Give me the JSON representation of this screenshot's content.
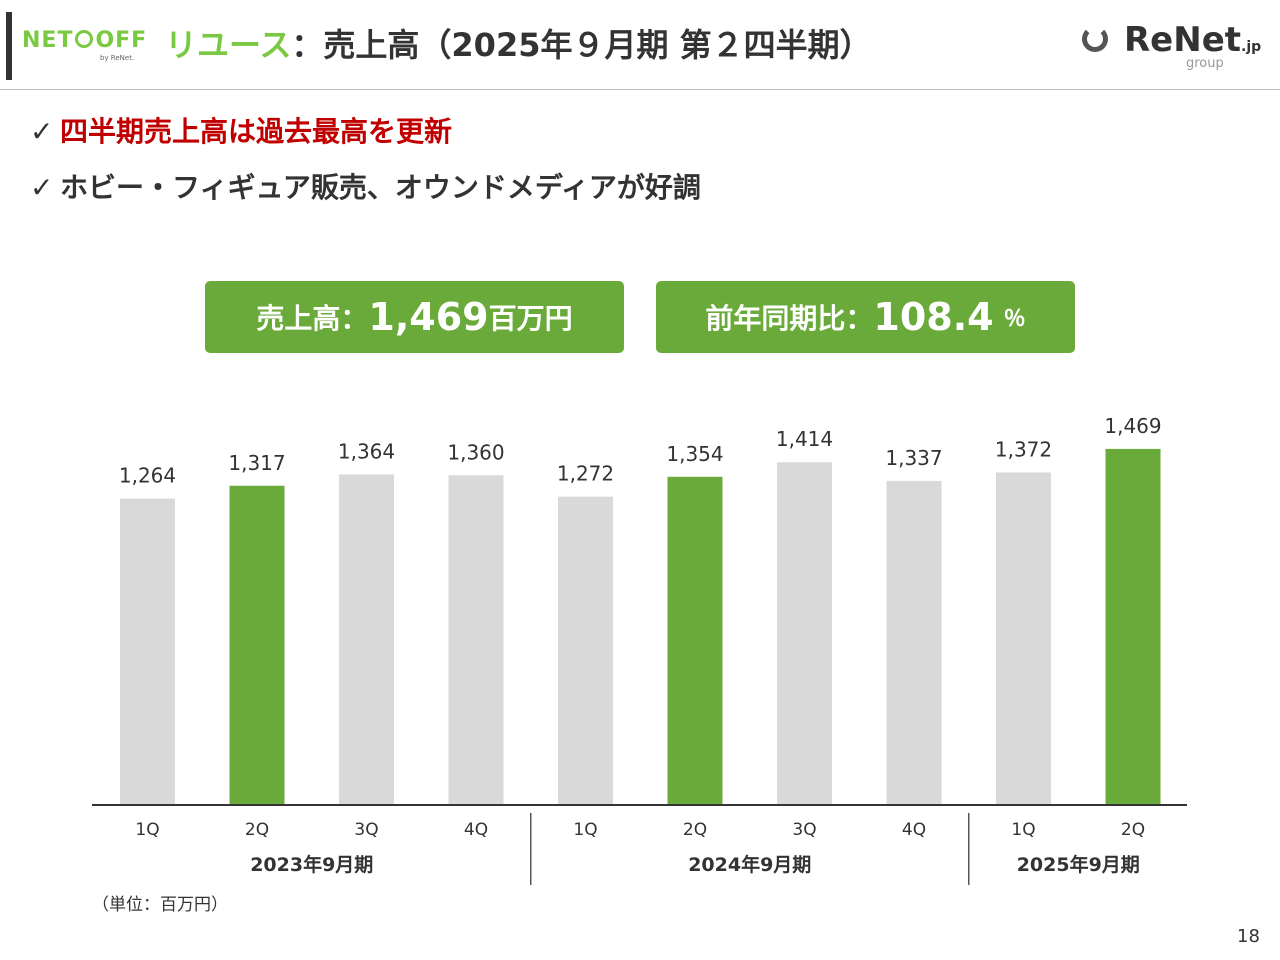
{
  "header": {
    "logo_text_left": "NET",
    "logo_text_right": "OFF",
    "logo_sub": "by ReNet.",
    "title_accent": "リユース",
    "title_rest": "：売上高（2025年９月期 第２四半期）",
    "renet_logo": "ReNet",
    "renet_jp": ".jp",
    "renet_group": "group"
  },
  "bullets": [
    {
      "text": "四半期売上高は過去最高を更新",
      "color": "#c00000"
    },
    {
      "text": "ホビー・フィギュア販売、オウンドメディアが好調",
      "color": "#333333"
    }
  ],
  "check_mark": "✓",
  "kpis": [
    {
      "label": "売上高：",
      "value": "1,469",
      "unit": "百万円"
    },
    {
      "label": "前年同期比：",
      "value": "108.4",
      "unit": "％"
    }
  ],
  "colors": {
    "accent": "#6aaa3a",
    "gray_bar": "#d9d9d9",
    "highlight_text": "#c00000"
  },
  "chart_unit_label": "（単位：百万円）",
  "page_number": "18",
  "chart_data": {
    "type": "bar",
    "categories": [
      "1Q",
      "2Q",
      "3Q",
      "4Q",
      "1Q",
      "2Q",
      "3Q",
      "4Q",
      "1Q",
      "2Q"
    ],
    "groups": [
      {
        "label": "2023年9月期",
        "start": 0,
        "end": 3
      },
      {
        "label": "2024年9月期",
        "start": 4,
        "end": 7
      },
      {
        "label": "2025年9月期",
        "start": 8,
        "end": 9
      }
    ],
    "values": [
      1264,
      1317,
      1364,
      1360,
      1272,
      1354,
      1414,
      1337,
      1372,
      1469
    ],
    "value_labels": [
      "1,264",
      "1,317",
      "1,364",
      "1,360",
      "1,272",
      "1,354",
      "1,414",
      "1,337",
      "1,372",
      "1,469"
    ],
    "highlighted": [
      false,
      true,
      false,
      false,
      false,
      true,
      false,
      false,
      false,
      true
    ],
    "ylim": [
      0,
      1600
    ],
    "grid": false,
    "title": "",
    "xlabel": "",
    "ylabel": ""
  }
}
